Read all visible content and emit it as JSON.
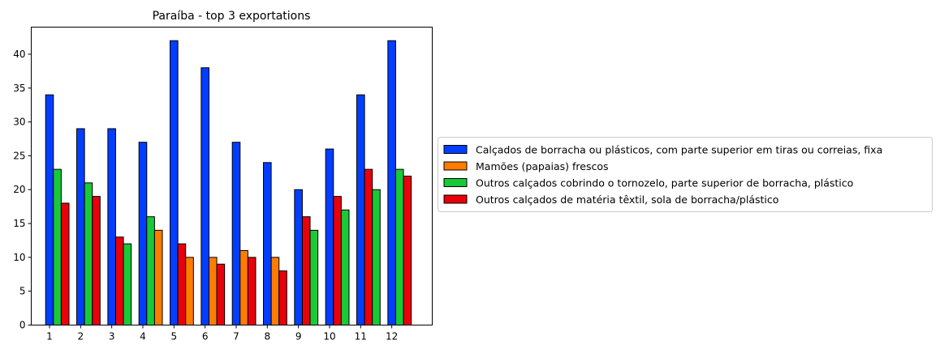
{
  "chart_data": {
    "type": "bar",
    "title": "Paraíba - top 3 exportations",
    "xlabel": "",
    "ylabel": "",
    "categories": [
      "1",
      "2",
      "3",
      "4",
      "5",
      "6",
      "7",
      "8",
      "9",
      "10",
      "11",
      "12"
    ],
    "ylim": [
      0,
      44
    ],
    "yticks": [
      0,
      5,
      10,
      15,
      20,
      25,
      30,
      35,
      40
    ],
    "grid": false,
    "legend_placement": "center-left outside right",
    "series": [
      {
        "name": "Calçados de borracha ou plásticos, com parte superior em tiras ou correias, fixa",
        "color": "#023eff",
        "values": [
          34,
          29,
          29,
          27,
          42,
          38,
          27,
          24,
          20,
          26,
          34,
          42
        ]
      },
      {
        "name": "Mamões (papaias) frescos",
        "color": "#ff7c00",
        "values": [
          null,
          null,
          null,
          14,
          10,
          10,
          11,
          10,
          null,
          null,
          null,
          null
        ]
      },
      {
        "name": "Outros calçados cobrindo o tornozelo, parte superior de borracha, plástico",
        "color": "#1ac938",
        "values": [
          23,
          21,
          12,
          16,
          null,
          null,
          null,
          null,
          14,
          17,
          20,
          23
        ]
      },
      {
        "name": "Outros calçados de matéria têxtil, sola de borracha/plástico",
        "color": "#e8000b",
        "values": [
          18,
          19,
          13,
          null,
          12,
          9,
          10,
          8,
          16,
          19,
          23,
          22
        ]
      }
    ],
    "bar_slots": [
      [
        0,
        2,
        3
      ],
      [
        0,
        2,
        3
      ],
      [
        0,
        3,
        2
      ],
      [
        0,
        2,
        1
      ],
      [
        0,
        3,
        1
      ],
      [
        0,
        1,
        3
      ],
      [
        0,
        1,
        3
      ],
      [
        0,
        1,
        3
      ],
      [
        0,
        3,
        2
      ],
      [
        0,
        3,
        2
      ],
      [
        0,
        3,
        2
      ],
      [
        0,
        2,
        3
      ]
    ]
  }
}
